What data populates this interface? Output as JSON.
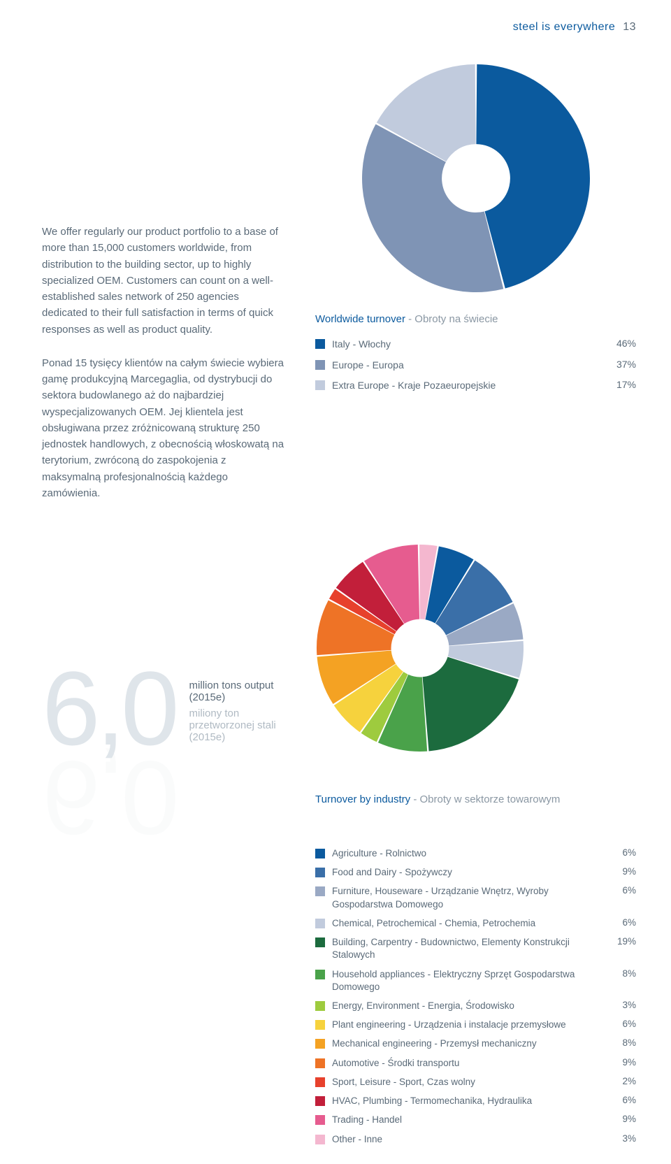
{
  "header": {
    "tag": "steel is everywhere",
    "page": "13"
  },
  "body": {
    "para_en": "We offer regularly our product portfolio to a base of more than 15,000 customers worldwide, from distribution to the building sector, up to highly specialized OEM. Customers can count on a well-established sales network of 250 agencies dedicated to their full satisfaction in terms of quick responses as well as product quality.",
    "para_pl": "Ponad 15 tysięcy klientów na całym świecie wybiera gamę produkcyjną Marcegaglia, od dystrybucji do sektora budowlanego aż do najbardziej wyspecjalizowanych OEM. Jej klientela jest obsługiwana przez zróżnicowaną strukturę 250 jednostek handlowych, z obecnością włoskowatą na terytorium, zwróconą do zaspokojenia z maksymalną profesjonalnością każdego zamówienia."
  },
  "turnover_chart": {
    "type": "donut",
    "size": 330,
    "inner_ratio": 0.3,
    "title": "Worldwide turnover",
    "subtitle": "Obroty na świecie",
    "start_angle_deg": 0,
    "background": "#ffffff",
    "slices": [
      {
        "label": "Italy - Włochy",
        "pct": "46%",
        "value": 46,
        "color": "#0b5a9e"
      },
      {
        "label": "Europe - Europa",
        "pct": "37%",
        "value": 37,
        "color": "#7f94b5"
      },
      {
        "label": "Extra Europe - Kraje Pozaeuropejskie",
        "pct": "17%",
        "value": 17,
        "color": "#c1cbdd"
      }
    ]
  },
  "bignum": {
    "value": "6,0",
    "value_color": "#dfe5ea",
    "fontsize": 150,
    "caption1": "million tons output (2015e)",
    "caption2": "miliony ton przetworzonej stali (2015e)"
  },
  "industry_chart": {
    "type": "donut",
    "size": 300,
    "inner_ratio": 0.28,
    "title": "Turnover by industry",
    "subtitle": "Obroty w sektorze towarowym",
    "start_angle_deg": 10,
    "background": "#ffffff",
    "slices": [
      {
        "label": "Agriculture - Rolnictwo",
        "pct": "6%",
        "value": 6,
        "color": "#0b5a9e"
      },
      {
        "label": "Food and Dairy - Spożywczy",
        "pct": "9%",
        "value": 9,
        "color": "#3a6fa8"
      },
      {
        "label": "Furniture, Houseware - Urządzanie Wnętrz, Wyroby Gospodarstwa Domowego",
        "pct": "6%",
        "value": 6,
        "color": "#9aa9c4"
      },
      {
        "label": "Chemical, Petrochemical - Chemia, Petrochemia",
        "pct": "6%",
        "value": 6,
        "color": "#c1cbdd"
      },
      {
        "label": "Building, Carpentry - Budownictwo, Elementy Konstrukcji Stalowych",
        "pct": "19%",
        "value": 19,
        "color": "#1c6b3e"
      },
      {
        "label": "Household appliances - Elektryczny Sprzęt Gospodarstwa Domowego",
        "pct": "8%",
        "value": 8,
        "color": "#4aa24a"
      },
      {
        "label": "Energy, Environment - Energia, Środowisko",
        "pct": "3%",
        "value": 3,
        "color": "#9ecb3e"
      },
      {
        "label": "Plant engineering - Urządzenia i instalacje przemysłowe",
        "pct": "6%",
        "value": 6,
        "color": "#f6d23d"
      },
      {
        "label": "Mechanical engineering - Przemysł mechaniczny",
        "pct": "8%",
        "value": 8,
        "color": "#f4a223"
      },
      {
        "label": "Automotive - Środki transportu",
        "pct": "9%",
        "value": 9,
        "color": "#ee7326"
      },
      {
        "label": "Sport, Leisure - Sport, Czas wolny",
        "pct": "2%",
        "value": 2,
        "color": "#e7412c"
      },
      {
        "label": "HVAC, Plumbing - Termomechanika, Hydraulika",
        "pct": "6%",
        "value": 6,
        "color": "#c21f3a"
      },
      {
        "label": "Trading - Handel",
        "pct": "9%",
        "value": 9,
        "color": "#e65c8f"
      },
      {
        "label": "Other - Inne",
        "pct": "3%",
        "value": 3,
        "color": "#f4b7cf"
      }
    ]
  }
}
